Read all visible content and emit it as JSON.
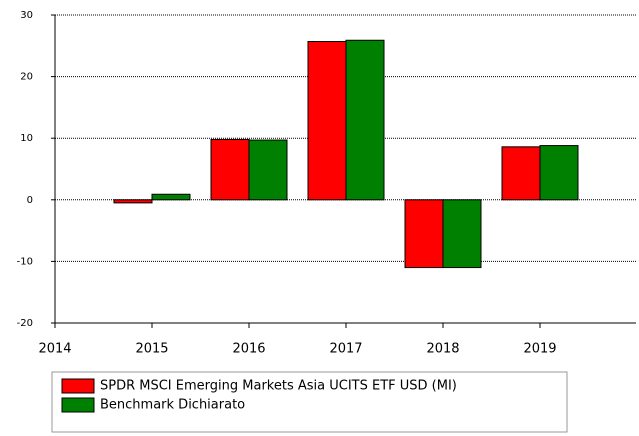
{
  "chart_data": {
    "type": "bar",
    "categories": [
      "2014",
      "2015",
      "2016",
      "2017",
      "2018",
      "2019"
    ],
    "series": [
      {
        "name": "SPDR MSCI Emerging Markets Asia UCITS ETF USD (MI)",
        "color": "#ff0000",
        "values": [
          null,
          -0.5,
          9.8,
          25.7,
          -11,
          8.6
        ]
      },
      {
        "name": "Benchmark Dichiarato",
        "color": "#008000",
        "values": [
          null,
          0.9,
          9.7,
          25.9,
          -11,
          8.8
        ]
      }
    ],
    "ylim": [
      -20,
      30
    ],
    "yticks": [
      -20,
      -10,
      0,
      10,
      20,
      30
    ],
    "grid": true
  }
}
